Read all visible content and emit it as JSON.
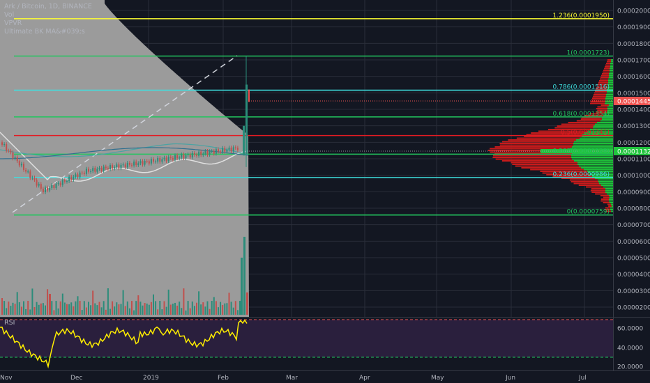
{
  "header": {
    "symbol_line": "Ark / Bitcoin, 1D, BINANCE",
    "indicators": [
      "Vol",
      "VPVR",
      "Ultimate BK MA&#039;s"
    ]
  },
  "rsi_label": "RSI",
  "colors": {
    "background": "#131722",
    "grid": "#2a2e39",
    "fib_green": "#22c55e",
    "fib_cyan": "#3ee0e0",
    "fib_red": "#e31b23",
    "fib_yellow": "#ffff33",
    "current_price": "#ef5350",
    "vpvr_poc": "#21c43d",
    "rsi_line": "#ffee00",
    "rsi_bg": "#2a1f3d"
  },
  "price_axis": {
    "ticks": [
      "0.0002000",
      "0.0001900",
      "0.0001800",
      "0.0001700",
      "0.0001600",
      "0.0001500",
      "0.0001400",
      "0.0001300",
      "0.0001200",
      "0.0001100",
      "0.0001000",
      "0.0000900",
      "0.0000800",
      "0.0000700",
      "0.0000600",
      "0.0000500",
      "0.0000400",
      "0.0000300",
      "0.0000200"
    ],
    "current_price_label": "0.0001445",
    "poc_label": "0.0001132"
  },
  "rsi_axis": {
    "ticks": [
      "60.0000",
      "40.0000",
      "20.0000"
    ]
  },
  "time_axis": {
    "labels": [
      "Nov",
      "Dec",
      "2019",
      "Feb",
      "Mar",
      "Apr",
      "May",
      "Jun",
      "Jul"
    ]
  },
  "fib_levels": [
    {
      "label": "1.236(0.0001950)",
      "ratio": 1.236,
      "price": 0.000195,
      "color": "#ffff33"
    },
    {
      "label": "1(0.0001723)",
      "ratio": 1,
      "price": 0.0001723,
      "color": "#22c55e"
    },
    {
      "label": "0.786(0.0001516)",
      "ratio": 0.786,
      "price": 0.0001516,
      "color": "#3ee0e0"
    },
    {
      "label": "0.618(0.0001354)",
      "ratio": 0.618,
      "price": 0.0001354,
      "color": "#22c55e"
    },
    {
      "label": "0.5(0.0001241)",
      "ratio": 0.5,
      "price": 0.0001241,
      "color": "#e31b23"
    },
    {
      "label": "0.382(0.0001128)",
      "ratio": 0.382,
      "price": 0.0001128,
      "color": "#22c55e"
    },
    {
      "label": "0.236(0.0000986)",
      "ratio": 0.236,
      "price": 9.86e-05,
      "color": "#3ee0e0"
    },
    {
      "label": "0(0.0000759)",
      "ratio": 0,
      "price": 7.59e-05,
      "color": "#22c55e"
    }
  ]
}
